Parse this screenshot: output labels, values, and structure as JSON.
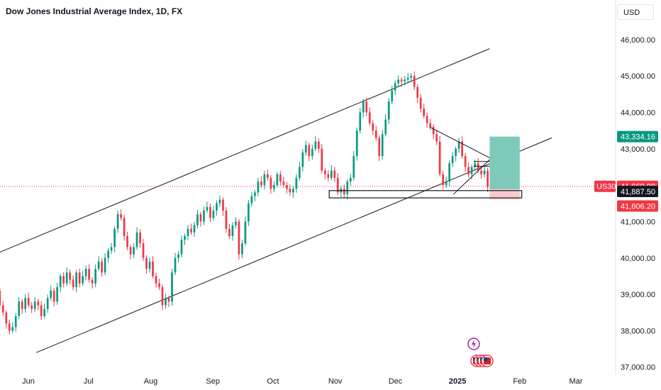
{
  "header": {
    "title": "Dow Jones Industrial Average Index, 1D, FX",
    "currency": "USD"
  },
  "colors": {
    "up": "#089981",
    "down": "#f23645",
    "line": "#131722",
    "target_zone": "#7fc9bb",
    "stop_zone": "#f9c9cc",
    "target_tag": "#089981",
    "price_tag": "#f23645",
    "support_tag": "#131722",
    "stop_tag": "#f23645",
    "price_line": "#f23645"
  },
  "chart_data": {
    "type": "candlestick",
    "ylim": [
      36800,
      46600
    ],
    "y_ticks": [
      37000,
      38000,
      39000,
      40000,
      41000,
      42000,
      43000,
      44000,
      45000,
      46000
    ],
    "y_tick_labels": [
      "37,000.00",
      "38,000.00",
      "39,000.00",
      "40,000.00",
      "41,000.00",
      "42,000.00",
      "43,000.00",
      "44,000.00",
      "45,000.00",
      "46,000.00"
    ],
    "x_labels": [
      "Jun",
      "Jul",
      "Aug",
      "Sep",
      "Oct",
      "Nov",
      "Dec",
      "2025",
      "Feb",
      "Mar"
    ],
    "x_label_dates": [
      "2024-06-01",
      "2024-07-01",
      "2024-08-01",
      "2024-09-01",
      "2024-10-01",
      "2024-11-01",
      "2024-12-01",
      "2025-01-01",
      "2025-02-01",
      "2025-03-01"
    ],
    "closes": [
      39800,
      39400,
      39100,
      38700,
      38500,
      38200,
      38000,
      38100,
      38400,
      38800,
      38600,
      38900,
      38700,
      38600,
      38800,
      38700,
      38400,
      38600,
      38900,
      39100,
      38800,
      39200,
      39500,
      39300,
      39600,
      39400,
      39200,
      39600,
      39300,
      39500,
      39700,
      39400,
      39300,
      39700,
      39900,
      39600,
      40000,
      40200,
      40300,
      40800,
      41200,
      41100,
      40600,
      40300,
      40100,
      40300,
      40700,
      40400,
      40000,
      39700,
      39900,
      39500,
      39300,
      39200,
      38700,
      38900,
      38800,
      39600,
      40000,
      40100,
      40500,
      40600,
      40800,
      40700,
      40900,
      41200,
      41000,
      41300,
      41400,
      41100,
      41300,
      41500,
      41600,
      41300,
      40800,
      40600,
      40900,
      41000,
      40100,
      40400,
      41000,
      41500,
      41700,
      41800,
      42100,
      42000,
      42300,
      42200,
      41900,
      42000,
      42300,
      42100,
      42000,
      41900,
      41800,
      41900,
      42200,
      42500,
      42900,
      43100,
      42800,
      43000,
      43200,
      43000,
      42400,
      42300,
      42200,
      42400,
      42200,
      41800,
      41900,
      41750,
      42100,
      42200,
      42800,
      43500,
      44000,
      44300,
      44000,
      43700,
      43500,
      43300,
      42800,
      43400,
      43800,
      44300,
      44600,
      44800,
      44900,
      44850,
      44900,
      44950,
      45000,
      44700,
      44400,
      44100,
      43900,
      43700,
      43600,
      43400,
      43200,
      42300,
      42000,
      42100,
      42600,
      42800,
      43000,
      43200,
      42800,
      42500,
      42300,
      42500,
      42600,
      42400,
      42300,
      42400,
      41950
    ],
    "channel_upper": {
      "start": [
        "2024-05-13",
        40050
      ],
      "end": [
        "2025-01-17",
        45750
      ]
    },
    "channel_lower": {
      "start": [
        "2024-06-05",
        37400
      ],
      "end": [
        "2025-02-17",
        43300
      ]
    },
    "triangle_top": {
      "start": [
        "2024-12-18",
        43600
      ],
      "end": [
        "2025-01-17",
        42750
      ]
    },
    "triangle_bottom": {
      "start": [
        "2024-12-30",
        41750
      ],
      "end": [
        "2025-01-17",
        42700
      ]
    },
    "support_zone": [
      41650,
      41850
    ],
    "price_line": 41969.09,
    "position": {
      "entry": 41887.5,
      "target": 43334.16,
      "stop": 41606.2
    },
    "price_tags": {
      "target": "43,334.16",
      "current": "41,969.09",
      "current_symbol": "US30",
      "support": "41,887.50",
      "stop": "41,606.20"
    }
  }
}
